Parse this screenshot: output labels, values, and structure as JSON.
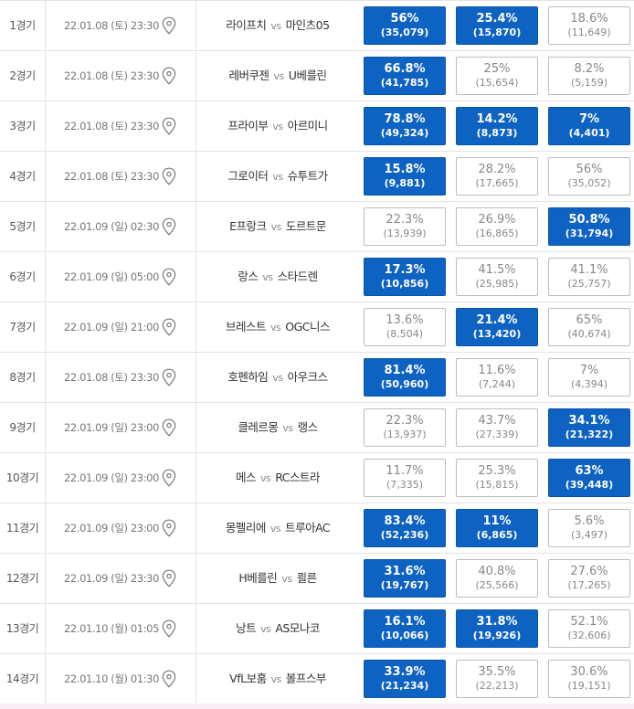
{
  "pin_icon": "map-pin-icon",
  "colors": {
    "highlight": "#0e63c2",
    "border": "#bdbdbd",
    "text_muted": "#888888"
  },
  "vs_label": "vs",
  "rows": [
    {
      "game": "1경기",
      "date": "22.01.08 (토) 23:30",
      "home": "라이프치",
      "away": "마인츠05",
      "odds": [
        {
          "pct": "56%",
          "count": "(35,079)",
          "hi": true
        },
        {
          "pct": "25.4%",
          "count": "(15,870)",
          "hi": true
        },
        {
          "pct": "18.6%",
          "count": "(11,649)",
          "hi": false
        }
      ]
    },
    {
      "game": "2경기",
      "date": "22.01.08 (토) 23:30",
      "home": "레버쿠젠",
      "away": "U베를린",
      "odds": [
        {
          "pct": "66.8%",
          "count": "(41,785)",
          "hi": true
        },
        {
          "pct": "25%",
          "count": "(15,654)",
          "hi": false
        },
        {
          "pct": "8.2%",
          "count": "(5,159)",
          "hi": false
        }
      ]
    },
    {
      "game": "3경기",
      "date": "22.01.08 (토) 23:30",
      "home": "프라이부",
      "away": "아르미니",
      "odds": [
        {
          "pct": "78.8%",
          "count": "(49,324)",
          "hi": true
        },
        {
          "pct": "14.2%",
          "count": "(8,873)",
          "hi": true
        },
        {
          "pct": "7%",
          "count": "(4,401)",
          "hi": true
        }
      ]
    },
    {
      "game": "4경기",
      "date": "22.01.08 (토) 23:30",
      "home": "그로이터",
      "away": "슈투트가",
      "odds": [
        {
          "pct": "15.8%",
          "count": "(9,881)",
          "hi": true
        },
        {
          "pct": "28.2%",
          "count": "(17,665)",
          "hi": false
        },
        {
          "pct": "56%",
          "count": "(35,052)",
          "hi": false
        }
      ]
    },
    {
      "game": "5경기",
      "date": "22.01.09 (일) 02:30",
      "home": "E프랑크",
      "away": "도르트문",
      "odds": [
        {
          "pct": "22.3%",
          "count": "(13,939)",
          "hi": false
        },
        {
          "pct": "26.9%",
          "count": "(16,865)",
          "hi": false
        },
        {
          "pct": "50.8%",
          "count": "(31,794)",
          "hi": true
        }
      ]
    },
    {
      "game": "6경기",
      "date": "22.01.09 (일) 05:00",
      "home": "랑스",
      "away": "스타드렌",
      "odds": [
        {
          "pct": "17.3%",
          "count": "(10,856)",
          "hi": true
        },
        {
          "pct": "41.5%",
          "count": "(25,985)",
          "hi": false
        },
        {
          "pct": "41.1%",
          "count": "(25,757)",
          "hi": false
        }
      ]
    },
    {
      "game": "7경기",
      "date": "22.01.09 (일) 21:00",
      "home": "브레스트",
      "away": "OGC니스",
      "odds": [
        {
          "pct": "13.6%",
          "count": "(8,504)",
          "hi": false
        },
        {
          "pct": "21.4%",
          "count": "(13,420)",
          "hi": true
        },
        {
          "pct": "65%",
          "count": "(40,674)",
          "hi": false
        }
      ]
    },
    {
      "game": "8경기",
      "date": "22.01.08 (토) 23:30",
      "home": "호펜하임",
      "away": "아우크스",
      "odds": [
        {
          "pct": "81.4%",
          "count": "(50,960)",
          "hi": true
        },
        {
          "pct": "11.6%",
          "count": "(7,244)",
          "hi": false
        },
        {
          "pct": "7%",
          "count": "(4,394)",
          "hi": false
        }
      ]
    },
    {
      "game": "9경기",
      "date": "22.01.09 (일) 23:00",
      "home": "클레르몽",
      "away": "랭스",
      "odds": [
        {
          "pct": "22.3%",
          "count": "(13,937)",
          "hi": false
        },
        {
          "pct": "43.7%",
          "count": "(27,339)",
          "hi": false
        },
        {
          "pct": "34.1%",
          "count": "(21,322)",
          "hi": true
        }
      ]
    },
    {
      "game": "10경기",
      "date": "22.01.09 (일) 23:00",
      "home": "메스",
      "away": "RC스트라",
      "odds": [
        {
          "pct": "11.7%",
          "count": "(7,335)",
          "hi": false
        },
        {
          "pct": "25.3%",
          "count": "(15,815)",
          "hi": false
        },
        {
          "pct": "63%",
          "count": "(39,448)",
          "hi": true
        }
      ]
    },
    {
      "game": "11경기",
      "date": "22.01.09 (일) 23:00",
      "home": "몽펠리에",
      "away": "트루아AC",
      "odds": [
        {
          "pct": "83.4%",
          "count": "(52,236)",
          "hi": true
        },
        {
          "pct": "11%",
          "count": "(6,865)",
          "hi": true
        },
        {
          "pct": "5.6%",
          "count": "(3,497)",
          "hi": false
        }
      ]
    },
    {
      "game": "12경기",
      "date": "22.01.09 (일) 23:30",
      "home": "H베를린",
      "away": "쾰른",
      "odds": [
        {
          "pct": "31.6%",
          "count": "(19,767)",
          "hi": true
        },
        {
          "pct": "40.8%",
          "count": "(25,566)",
          "hi": false
        },
        {
          "pct": "27.6%",
          "count": "(17,265)",
          "hi": false
        }
      ]
    },
    {
      "game": "13경기",
      "date": "22.01.10 (월) 01:05",
      "home": "낭트",
      "away": "AS모나코",
      "odds": [
        {
          "pct": "16.1%",
          "count": "(10,066)",
          "hi": true
        },
        {
          "pct": "31.8%",
          "count": "(19,926)",
          "hi": true
        },
        {
          "pct": "52.1%",
          "count": "(32,606)",
          "hi": false
        }
      ]
    },
    {
      "game": "14경기",
      "date": "22.01.10 (월) 01:30",
      "home": "VfL보훔",
      "away": "볼프스부",
      "odds": [
        {
          "pct": "33.9%",
          "count": "(21,234)",
          "hi": true
        },
        {
          "pct": "35.5%",
          "count": "(22,213)",
          "hi": false
        },
        {
          "pct": "30.6%",
          "count": "(19,151)",
          "hi": false
        }
      ]
    }
  ]
}
